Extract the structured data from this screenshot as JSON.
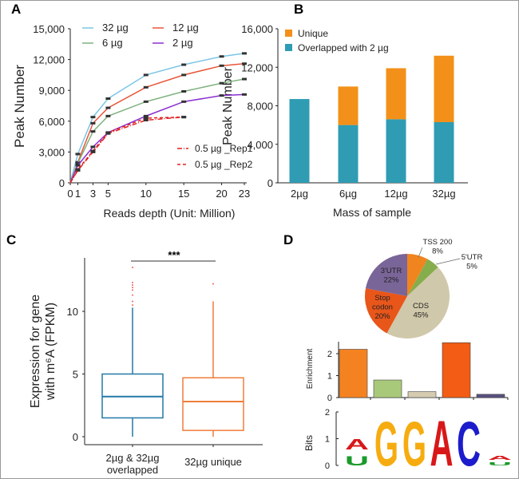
{
  "chart_data": [
    {
      "panel": "A",
      "type": "line",
      "xlabel": "Reads depth  (Unit: Million)",
      "ylabel": "Peak Number",
      "xticks": [
        0,
        1,
        3,
        5,
        10,
        15,
        20,
        23
      ],
      "yticks": [
        "0",
        "3,000",
        "6,000",
        "9,000",
        "12,000",
        "15,000"
      ],
      "xlim": [
        0,
        23
      ],
      "ylim": [
        0,
        15000
      ],
      "legend_position": "top-left and bottom-right",
      "series": [
        {
          "name": "32 µg",
          "color": "#7cc6e6",
          "dash": "",
          "x": [
            0,
            1,
            3,
            5,
            10,
            15,
            20,
            23
          ],
          "y": [
            0,
            2800,
            6400,
            8200,
            10500,
            11500,
            12300,
            12600
          ]
        },
        {
          "name": "12 µg",
          "color": "#e8553a",
          "dash": "",
          "x": [
            0,
            1,
            3,
            5,
            10,
            15,
            20,
            23
          ],
          "y": [
            0,
            2000,
            5800,
            7300,
            9300,
            10500,
            11400,
            11600
          ]
        },
        {
          "name": "6   µg",
          "color": "#7fb27f",
          "dash": "",
          "x": [
            0,
            1,
            3,
            5,
            10,
            15,
            20,
            23
          ],
          "y": [
            0,
            1900,
            5000,
            6500,
            7900,
            8900,
            9700,
            10100
          ]
        },
        {
          "name": "2   µg",
          "color": "#8a2fd0",
          "dash": "",
          "x": [
            0,
            1,
            3,
            5,
            10,
            15,
            20,
            23
          ],
          "y": [
            0,
            1700,
            3500,
            4900,
            6500,
            7900,
            8500,
            8600
          ]
        },
        {
          "name": "0.5 µg _Rep1",
          "color": "#e02020",
          "dash": "6,2,1,2",
          "x": [
            0,
            1,
            3,
            5,
            10,
            15
          ],
          "y": [
            0,
            1200,
            3000,
            4800,
            6100,
            6400
          ]
        },
        {
          "name": "0.5 µg _Rep2",
          "color": "#e02020",
          "dash": "4,3",
          "x": [
            0,
            1,
            3,
            5,
            10,
            15
          ],
          "y": [
            0,
            1300,
            3100,
            4900,
            6300,
            6400
          ]
        }
      ]
    },
    {
      "panel": "B",
      "type": "bar",
      "stacked": true,
      "xlabel": "Mass of sample",
      "ylabel": "Peak Number",
      "categories": [
        "2µg",
        "6µg",
        "12µg",
        "32µg"
      ],
      "yticks": [
        "0",
        "4,000",
        "8,000",
        "12,000",
        "16,000"
      ],
      "ylim": [
        0,
        16000
      ],
      "legend_position": "top-left",
      "series": [
        {
          "name": "Overlapped with 2 µg",
          "color": "#2f9cb4",
          "values": [
            8700,
            6000,
            6600,
            6300
          ]
        },
        {
          "name": "Unique",
          "color": "#f39019",
          "values": [
            0,
            4000,
            5300,
            6900
          ]
        }
      ]
    },
    {
      "panel": "C",
      "type": "box",
      "ylabel": [
        "Expression for gene",
        "with m⁶A (FPKM)"
      ],
      "yticks": [
        0,
        5,
        10
      ],
      "ylim": [
        0,
        14
      ],
      "significance": "***",
      "categories": [
        [
          "2µg  & 32µg",
          "overlapped"
        ],
        [
          "32µg  unique"
        ]
      ],
      "boxes": [
        {
          "color": "#2279a6",
          "min": 0,
          "q1": 1.5,
          "median": 3.2,
          "q3": 5.0,
          "max": 10.3,
          "outliers": [
            10.5,
            10.8,
            11.3,
            11.7,
            11.9,
            12.1,
            12.3,
            13.5
          ]
        },
        {
          "color": "#ef7d3a",
          "min": 0,
          "q1": 0.5,
          "median": 2.8,
          "q3": 4.7,
          "max": 10.8,
          "outliers": [
            12.2
          ]
        }
      ]
    },
    {
      "panel": "D",
      "type": "pie",
      "slices": [
        {
          "label": "TSS 200",
          "value": 8,
          "color": "#f0841e"
        },
        {
          "label": "5'UTR",
          "value": 5,
          "color": "#86ad4c"
        },
        {
          "label": "CDS",
          "value": 45,
          "color": "#d0c8aa"
        },
        {
          "label": "Stop codon",
          "value": 20,
          "color": "#e8561a"
        },
        {
          "label": "3'UTR",
          "value": 22,
          "color": "#7a6598"
        }
      ]
    },
    {
      "panel": "D",
      "type": "bar",
      "ylabel": "Enrichment",
      "yticks": [
        0,
        1,
        2
      ],
      "ylim": [
        0,
        2.5
      ],
      "values": [
        2.2,
        0.8,
        0.27,
        2.5,
        0.15
      ],
      "colors": [
        "#f58220",
        "#a9c97a",
        "#d4cbb0",
        "#f25c14",
        "#5a5080"
      ]
    },
    {
      "panel": "D",
      "type": "sequence-logo",
      "ylabel": "Bits",
      "yticks": [
        0,
        1,
        2
      ],
      "ylim": [
        0,
        2
      ],
      "positions": [
        [
          {
            "char": "U",
            "bits": 0.35,
            "color": "#1a9a2a"
          },
          {
            "char": "A",
            "bits": 0.4,
            "color": "#d81818"
          }
        ],
        [
          {
            "char": "G",
            "bits": 1.7,
            "color": "#f6ac10"
          }
        ],
        [
          {
            "char": "G",
            "bits": 1.7,
            "color": "#f6ac10"
          }
        ],
        [
          {
            "char": "A",
            "bits": 1.75,
            "color": "#d81818"
          }
        ],
        [
          {
            "char": "C",
            "bits": 1.7,
            "color": "#1c1ccc"
          }
        ],
        [
          {
            "char": "U",
            "bits": 0.12,
            "color": "#1a9a2a"
          },
          {
            "char": "A",
            "bits": 0.15,
            "color": "#d81818"
          }
        ]
      ]
    }
  ],
  "panel_labels": [
    "A",
    "B",
    "C",
    "D"
  ]
}
